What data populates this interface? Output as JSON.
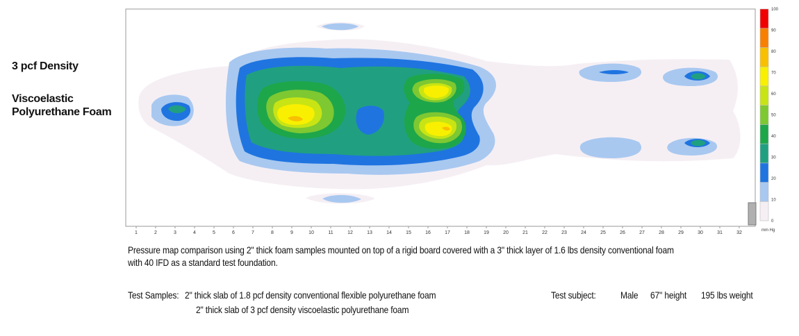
{
  "labels": {
    "density": "3 pcf Density",
    "foam_line1": "Viscoelastic",
    "foam_line2": "Polyurethane Foam"
  },
  "chart_data": {
    "type": "heatmap",
    "title": "",
    "xlabel": "",
    "ylabel": "",
    "x_ticks": [
      "1",
      "2",
      "3",
      "4",
      "5",
      "6",
      "7",
      "8",
      "9",
      "10",
      "11",
      "12",
      "13",
      "14",
      "15",
      "16",
      "17",
      "18",
      "19",
      "20",
      "21",
      "22",
      "23",
      "24",
      "25",
      "26",
      "27",
      "28",
      "29",
      "30",
      "31",
      "32"
    ],
    "xlim": [
      1,
      32
    ],
    "color_scale": {
      "unit": "mm Hg",
      "ticks": [
        "0",
        "10",
        "20",
        "30",
        "40",
        "50",
        "60",
        "70",
        "80",
        "90",
        "100"
      ],
      "min": 0,
      "max": 100,
      "colors": [
        "#f5eff4",
        "#a8c8f0",
        "#1f74e0",
        "#20a080",
        "#1ea64a",
        "#7ec832",
        "#c8e414",
        "#f8f000",
        "#f8c000",
        "#f88000",
        "#f00000"
      ]
    },
    "regions": [
      {
        "x": [
          2.6,
          3.8
        ],
        "y": 0.52,
        "value": 30
      },
      {
        "x": [
          11.0,
          11.6
        ],
        "y": 0.12,
        "value": 20
      },
      {
        "x": [
          11.0,
          11.8
        ],
        "y": 0.86,
        "value": 20
      },
      {
        "x": [
          6.8,
          19.2
        ],
        "y": 0.45,
        "value": 30
      },
      {
        "x": [
          8.6,
          10.6
        ],
        "y": 0.52,
        "value": 70
      },
      {
        "x": [
          15.6,
          17.2
        ],
        "y": 0.4,
        "value": 70
      },
      {
        "x": [
          16.0,
          17.4
        ],
        "y": 0.58,
        "value": 70
      },
      {
        "x": [
          24.0,
          26.6
        ],
        "y": 0.3,
        "value": 20
      },
      {
        "x": [
          24.0,
          26.6
        ],
        "y": 0.65,
        "value": 20
      },
      {
        "x": [
          28.4,
          30.8
        ],
        "y": 0.31,
        "value": 30
      },
      {
        "x": [
          28.4,
          30.8
        ],
        "y": 0.65,
        "value": 30
      }
    ]
  },
  "caption": "Pressure map comparison using 2\" thick foam samples mounted on top of a rigid board covered with a 3\" thick layer of 1.6 lbs density conventional foam with 40 IFD as a standard test foundation.",
  "test_samples": {
    "heading": "Test Samples:",
    "sample_1": "2\" thick slab of 1.8 pcf density conventional flexible polyurethane foam",
    "sample_2": "2\" thick slab of 3 pcf density viscoelastic polyurethane foam"
  },
  "test_subject": {
    "heading": "Test subject:",
    "gender": "Male",
    "height": "67\" height",
    "weight": "195 lbs weight"
  }
}
